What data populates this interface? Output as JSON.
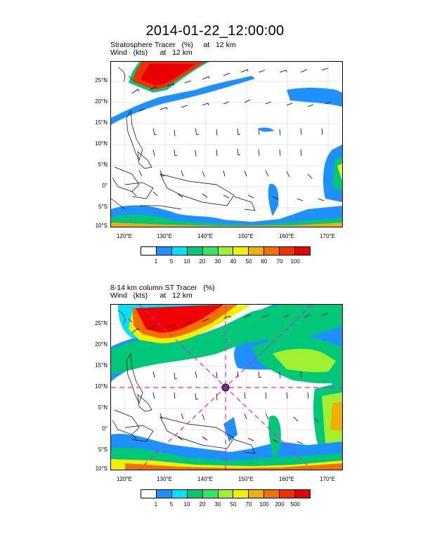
{
  "title": "2014-01-22_12:00:00",
  "panels": [
    {
      "subtitle_line1": "Stratosphere Tracer   (%)     at   12 km",
      "subtitle_line2": "Wind   (kts)      at   12 km",
      "colorbar_labels": [
        "1",
        "5",
        "10",
        "20",
        "30",
        "40",
        "50",
        "60",
        "70",
        "100"
      ]
    },
    {
      "subtitle_line1": "8-14 km column ST Tracer   (%)",
      "subtitle_line2": "Wind   (kts)      at   12 km",
      "colorbar_labels": [
        "1",
        "5",
        "10",
        "20",
        "30",
        "50",
        "70",
        "100",
        "200",
        "500"
      ]
    }
  ],
  "lat_labels": [
    "25°N",
    "20°N",
    "15°N",
    "10°N",
    "5°N",
    "0°",
    "5°S",
    "10°S"
  ],
  "lon_labels": [
    "120°E",
    "130°E",
    "140°E",
    "150°E",
    "160°E",
    "170°E"
  ],
  "colorbar_colors": [
    "#ffffff",
    "#1e90ff",
    "#00e0ff",
    "#00c878",
    "#30e860",
    "#a0f030",
    "#f0f000",
    "#f0b000",
    "#f07000",
    "#f00000",
    "#e80000"
  ],
  "colorbar_colors_2": [
    "#ffffff",
    "#1e90ff",
    "#00e0ff",
    "#00c878",
    "#30e860",
    "#a0f030",
    "#f0f000",
    "#f0b000",
    "#f07000",
    "#f03000",
    "#e80000"
  ]
}
